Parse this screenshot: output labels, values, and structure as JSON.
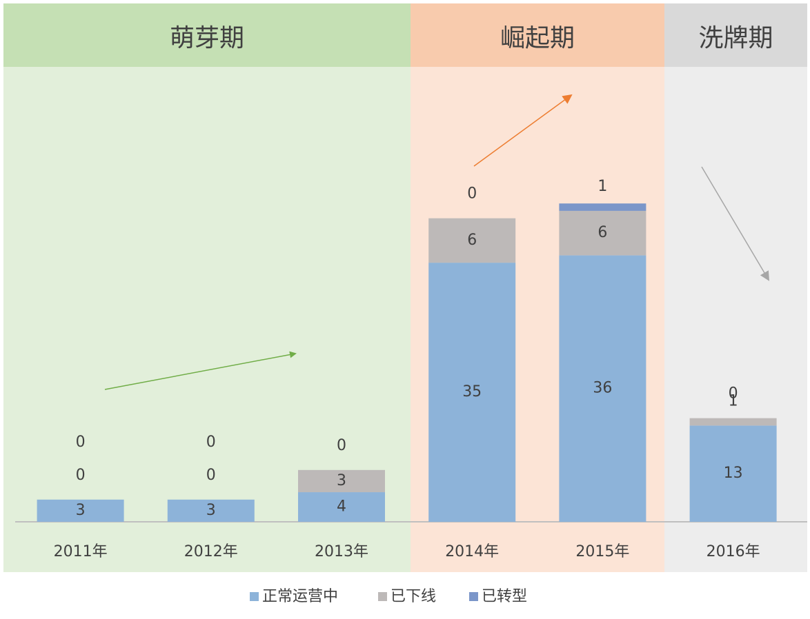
{
  "chart_data": {
    "type": "stacked-bar",
    "phases": [
      "萌芽期",
      "崛起期",
      "洗牌期"
    ],
    "categories": [
      "2011年",
      "2012年",
      "2013年",
      "2014年",
      "2015年",
      "2016年"
    ],
    "series": [
      {
        "name": "正常运营中",
        "color": "#8db3d9",
        "values": [
          3,
          3,
          4,
          35,
          36,
          13
        ]
      },
      {
        "name": "已下线",
        "color": "#bdb9b8",
        "values": [
          0,
          0,
          3,
          6,
          6,
          1
        ]
      },
      {
        "name": "已转型",
        "color": "#7b96c9",
        "values": [
          0,
          0,
          0,
          0,
          1,
          0
        ]
      }
    ]
  }
}
